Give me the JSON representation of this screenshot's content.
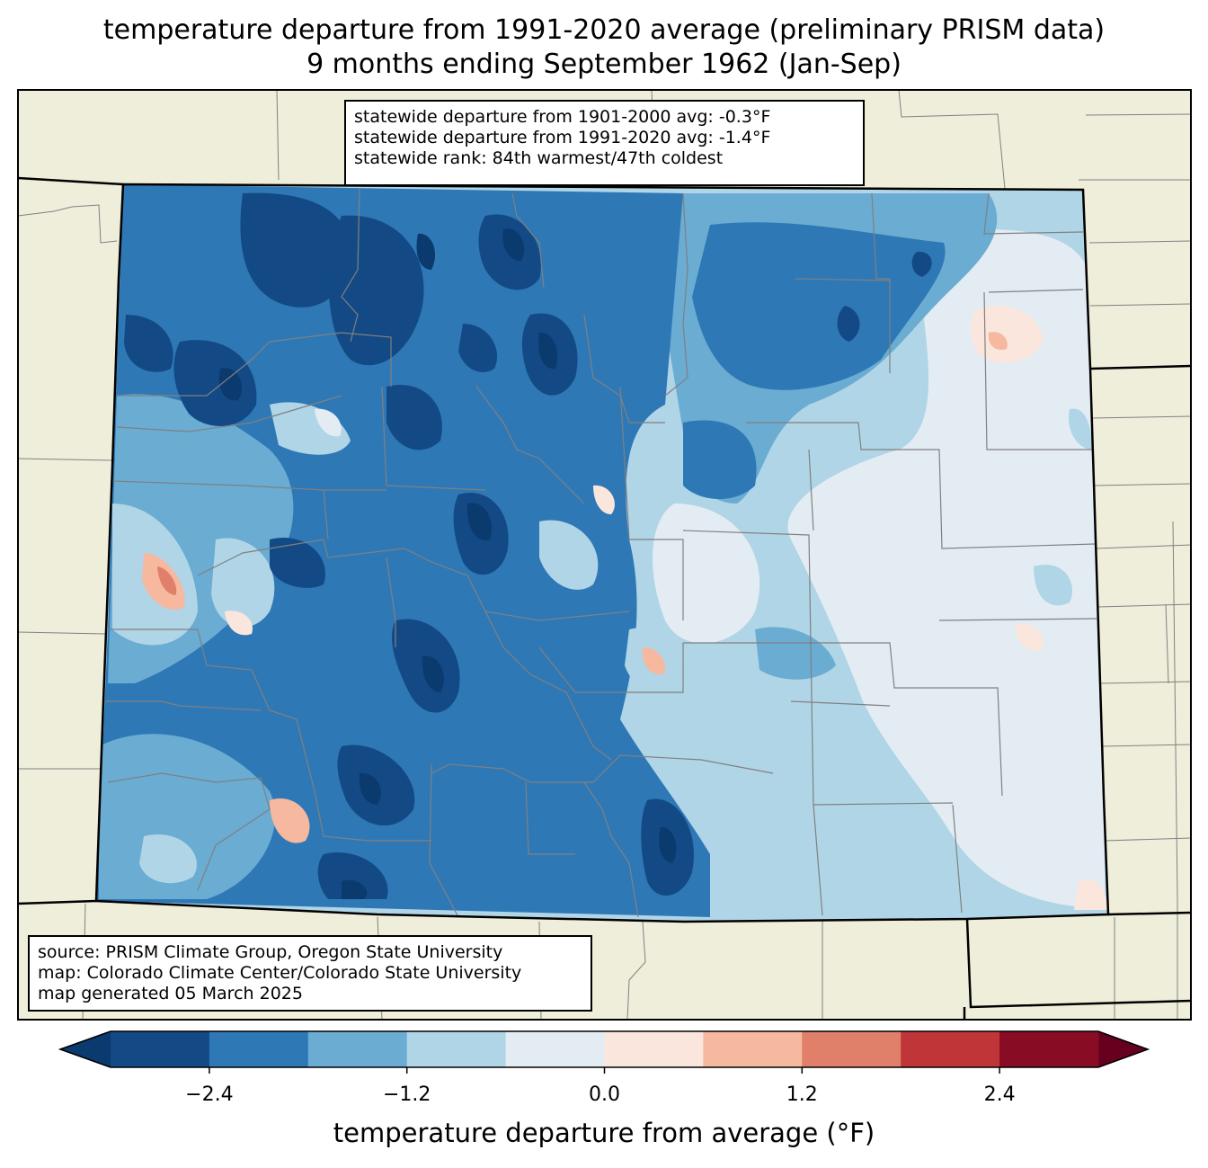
{
  "title": {
    "line1": "temperature departure from 1991-2020 average (preliminary PRISM data)",
    "line2": "9 months ending September 1962 (Jan-Sep)"
  },
  "stats": {
    "line1": "statewide departure from 1901-2000 avg: -0.3°F",
    "line2": "statewide departure from 1991-2020 avg: -1.4°F",
    "line3": "statewide rank: 84th warmest/47th coldest"
  },
  "credits": {
    "line1": "source: PRISM Climate Group, Oregon State University",
    "line2": "map: Colorado Climate Center/Colorado State University",
    "line3": "map generated 05 March 2025"
  },
  "colorbar": {
    "title": "temperature departure from average (°F)",
    "ticks": [
      "−2.4",
      "−1.2",
      "0.0",
      "1.2",
      "2.4"
    ],
    "tick_values": [
      -2.4,
      -1.2,
      0.0,
      1.2,
      2.4
    ],
    "bounds": [
      -3.0,
      -2.4,
      -1.8,
      -1.2,
      -0.6,
      0.0,
      0.6,
      1.2,
      1.8,
      2.4,
      3.0
    ],
    "colors": [
      "#0b3a6e",
      "#134a85",
      "#2f78b6",
      "#6aacd2",
      "#b0d5e7",
      "#e4ecf3",
      "#fae6dc",
      "#f6b89e",
      "#e0806a",
      "#c03538",
      "#870c24",
      "#67001f"
    ]
  },
  "colors": {
    "background_land": "#efeedb",
    "state_border": "#000000",
    "county_border": "#808080"
  }
}
